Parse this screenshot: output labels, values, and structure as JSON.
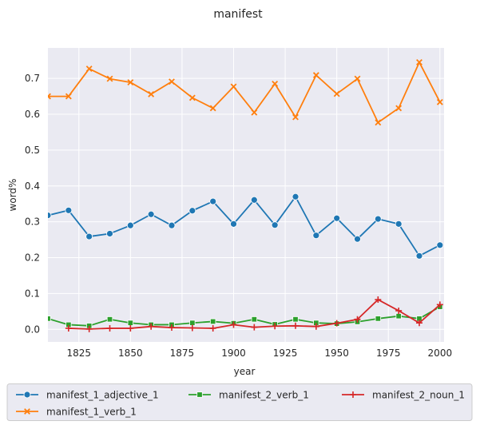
{
  "chart_data": {
    "type": "line",
    "title": "manifest",
    "xlabel": "year",
    "ylabel": "word%",
    "xlim": [
      1810,
      2002
    ],
    "ylim": [
      -0.035,
      0.785
    ],
    "xticks": [
      1825,
      1850,
      1875,
      1900,
      1925,
      1950,
      1975,
      2000
    ],
    "yticks": [
      0.0,
      0.1,
      0.2,
      0.3,
      0.4,
      0.5,
      0.6,
      0.7
    ],
    "ytick_labels": [
      "0.0",
      "0.1",
      "0.2",
      "0.3",
      "0.4",
      "0.5",
      "0.6",
      "0.7"
    ],
    "grid": true,
    "legend_position": "bottom",
    "x": [
      1810,
      1820,
      1830,
      1840,
      1850,
      1860,
      1870,
      1880,
      1890,
      1900,
      1910,
      1920,
      1930,
      1940,
      1950,
      1960,
      1970,
      1980,
      1990,
      2000
    ],
    "series": [
      {
        "name": "manifest_1_adjective_1",
        "color": "#1f77b4",
        "marker": "circle",
        "values": [
          0.318,
          0.332,
          0.259,
          0.267,
          0.29,
          0.321,
          0.29,
          0.331,
          0.357,
          0.294,
          0.361,
          0.291,
          0.37,
          0.262,
          0.31,
          0.252,
          0.308,
          0.294,
          0.205,
          0.235
        ]
      },
      {
        "name": "manifest_1_verb_1",
        "color": "#ff7f0e",
        "marker": "x",
        "values": [
          0.65,
          0.65,
          0.727,
          0.699,
          0.689,
          0.656,
          0.691,
          0.646,
          0.617,
          0.677,
          0.605,
          0.685,
          0.592,
          0.709,
          0.657,
          0.699,
          0.577,
          0.617,
          0.745,
          0.634
        ]
      },
      {
        "name": "manifest_2_verb_1",
        "color": "#2ca02c",
        "marker": "square",
        "values": [
          0.03,
          0.013,
          0.01,
          0.028,
          0.018,
          0.013,
          0.013,
          0.018,
          0.022,
          0.017,
          0.028,
          0.014,
          0.028,
          0.018,
          0.016,
          0.021,
          0.03,
          0.037,
          0.03,
          0.063
        ]
      },
      {
        "name": "manifest_2_noun_1",
        "color": "#d62728",
        "marker": "plus",
        "values": [
          null,
          0.003,
          0.001,
          0.003,
          0.003,
          0.008,
          0.005,
          0.004,
          0.003,
          0.013,
          0.006,
          0.009,
          0.01,
          0.008,
          0.017,
          0.028,
          0.083,
          0.052,
          0.018,
          0.069
        ]
      }
    ],
    "legend_order": [
      "manifest_1_adjective_1",
      "manifest_2_verb_1",
      "manifest_2_noun_1",
      "manifest_1_verb_1"
    ]
  }
}
